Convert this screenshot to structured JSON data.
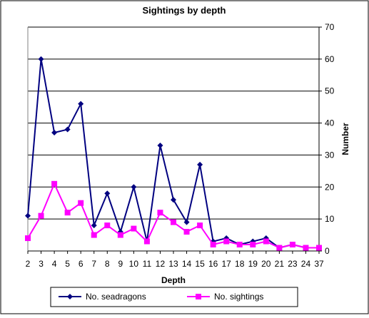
{
  "chart_data": {
    "type": "line",
    "title": "Sightings by depth",
    "xlabel": "Depth",
    "ylabel": "Number",
    "categories": [
      "2",
      "3",
      "4",
      "5",
      "6",
      "7",
      "8",
      "9",
      "10",
      "11",
      "12",
      "13",
      "14",
      "15",
      "16",
      "17",
      "18",
      "19",
      "20",
      "21",
      "23",
      "24",
      "37"
    ],
    "ylim": [
      0,
      70
    ],
    "yticks": [
      0,
      10,
      20,
      30,
      40,
      50,
      60,
      70
    ],
    "y_axis_side": "right",
    "grid": true,
    "legend_position": "bottom",
    "series": [
      {
        "name": "No. seadragons",
        "color": "#000080",
        "marker": "diamond",
        "values": [
          11,
          60,
          37,
          38,
          46,
          8,
          18,
          6,
          20,
          3,
          33,
          16,
          9,
          27,
          3,
          4,
          2,
          3,
          4,
          1,
          2,
          1,
          1
        ]
      },
      {
        "name": "No. sightings",
        "color": "#FF00FF",
        "marker": "square",
        "values": [
          4,
          11,
          21,
          12,
          15,
          5,
          8,
          5,
          7,
          3,
          12,
          9,
          6,
          8,
          2,
          3,
          2,
          2,
          3,
          1,
          2,
          1,
          1
        ]
      }
    ]
  }
}
